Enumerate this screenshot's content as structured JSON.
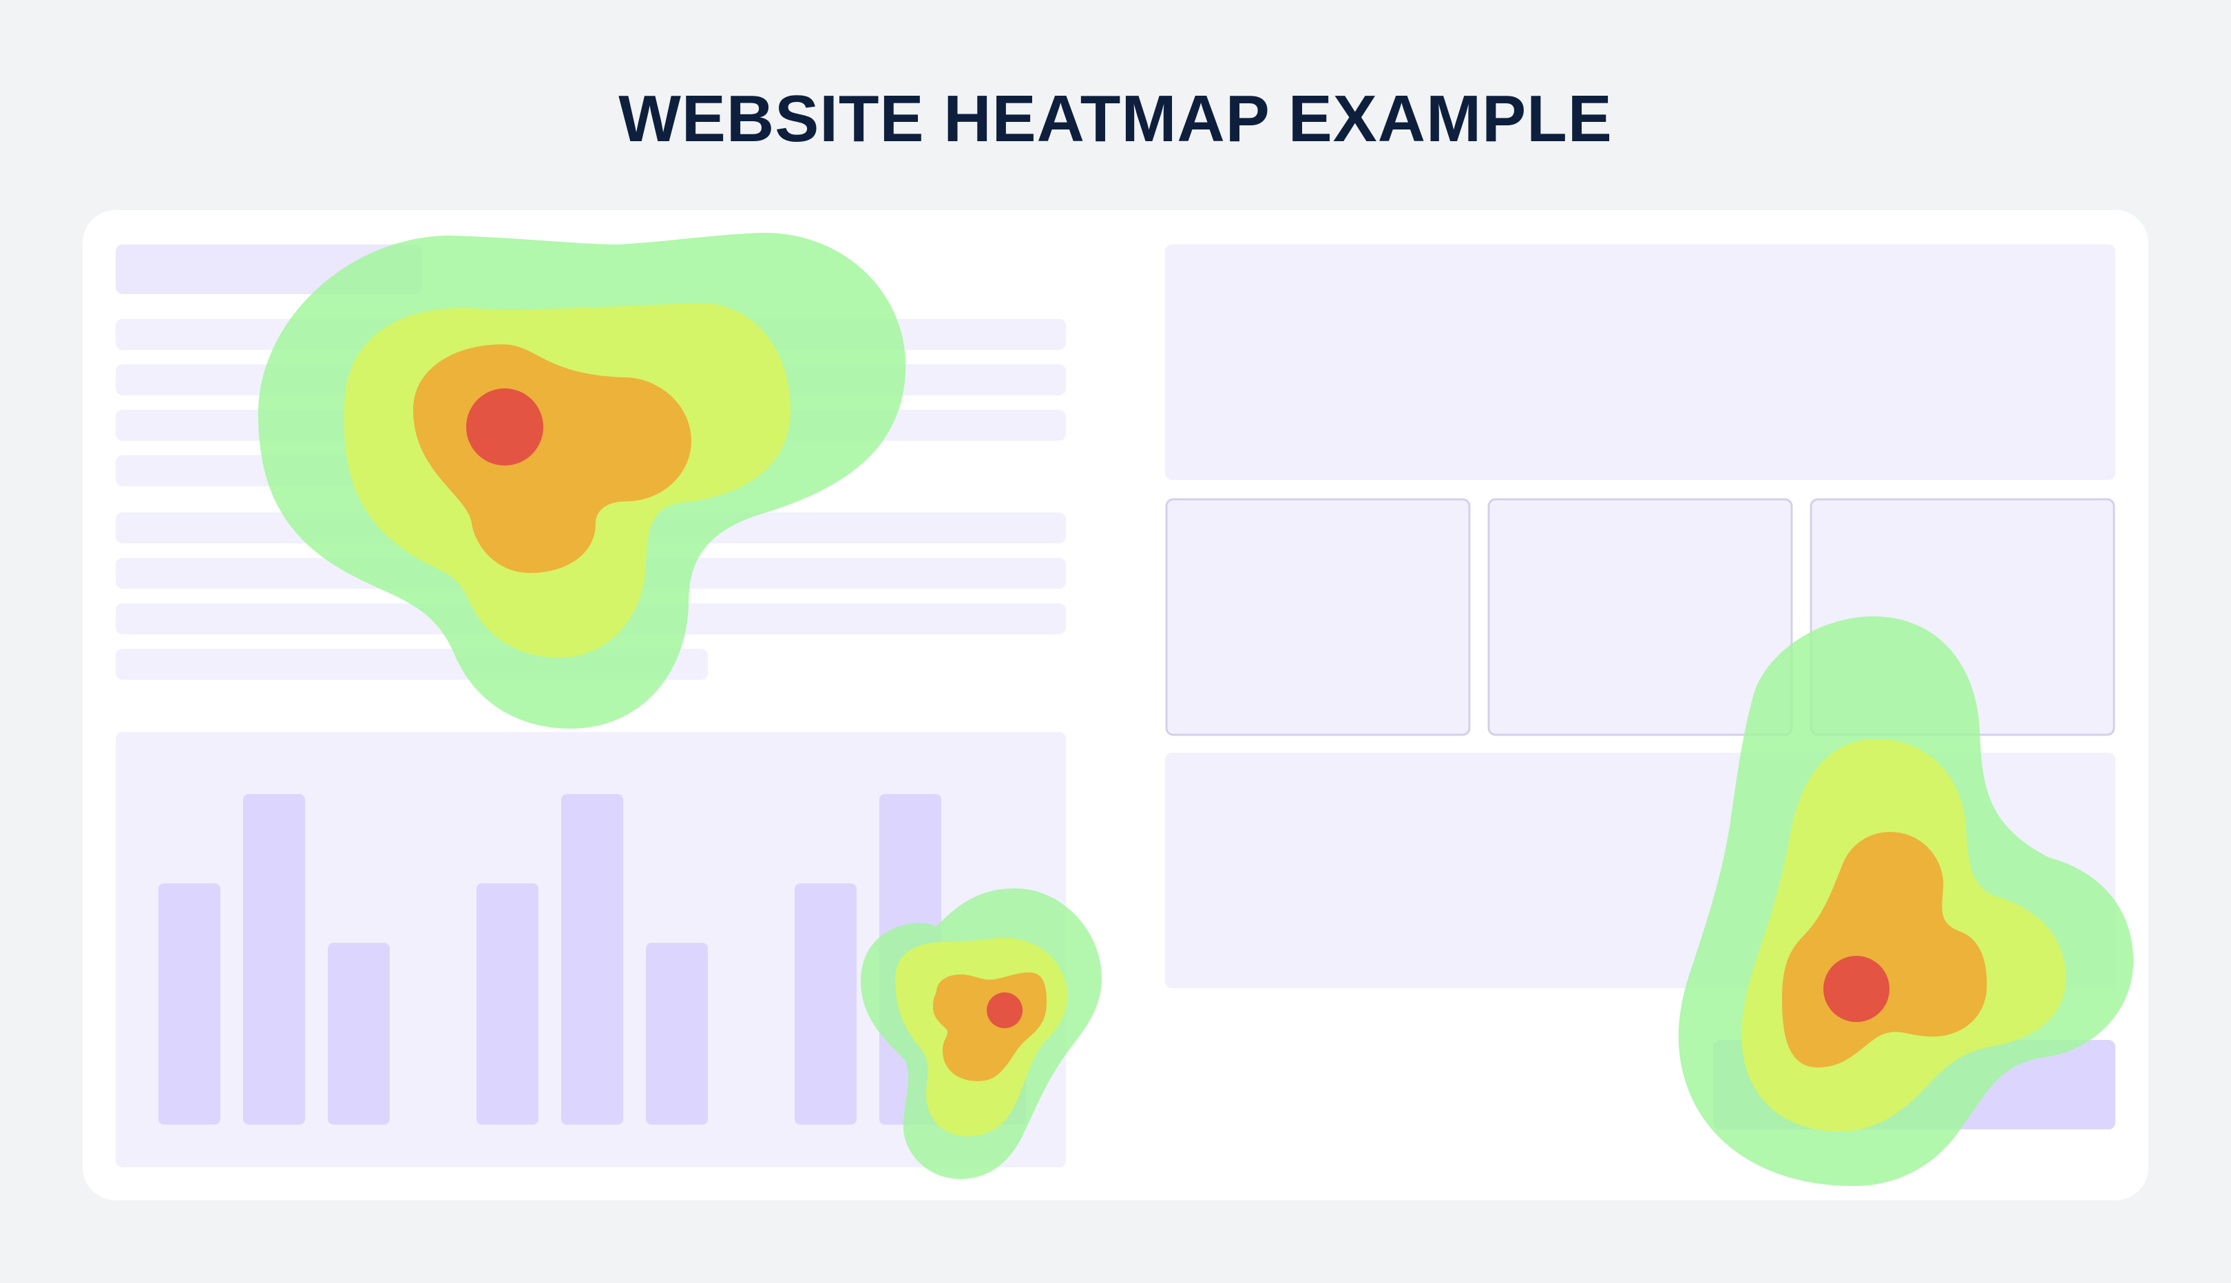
{
  "title": "WEBSITE HEATMAP EXAMPLE",
  "colors": {
    "page_bg": "#f2f3f5",
    "card_bg": "#ffffff",
    "placeholder_light": "#f1f0fc",
    "placeholder_purple": "#ebe7fc",
    "placeholder_border": "#d3d0e8",
    "bar": "#dcd6fe",
    "heat_low": "#a0f59a",
    "heat_mid": "#dcf55c",
    "heat_high": "#ecb23a",
    "heat_peak": "#e35443",
    "title": "#0d1f3c"
  },
  "bar_chart": {
    "groups": 3,
    "bars_per_group": 3,
    "relative_heights": [
      0.73,
      1.0,
      0.55
    ]
  },
  "heat_zones": [
    {
      "name": "text-block-hotspot",
      "levels": [
        "low",
        "mid",
        "high",
        "peak"
      ]
    },
    {
      "name": "bar-chart-hotspot",
      "levels": [
        "low",
        "mid",
        "high",
        "peak"
      ]
    },
    {
      "name": "bottom-right-hotspot",
      "levels": [
        "low",
        "mid",
        "high",
        "peak"
      ]
    }
  ]
}
